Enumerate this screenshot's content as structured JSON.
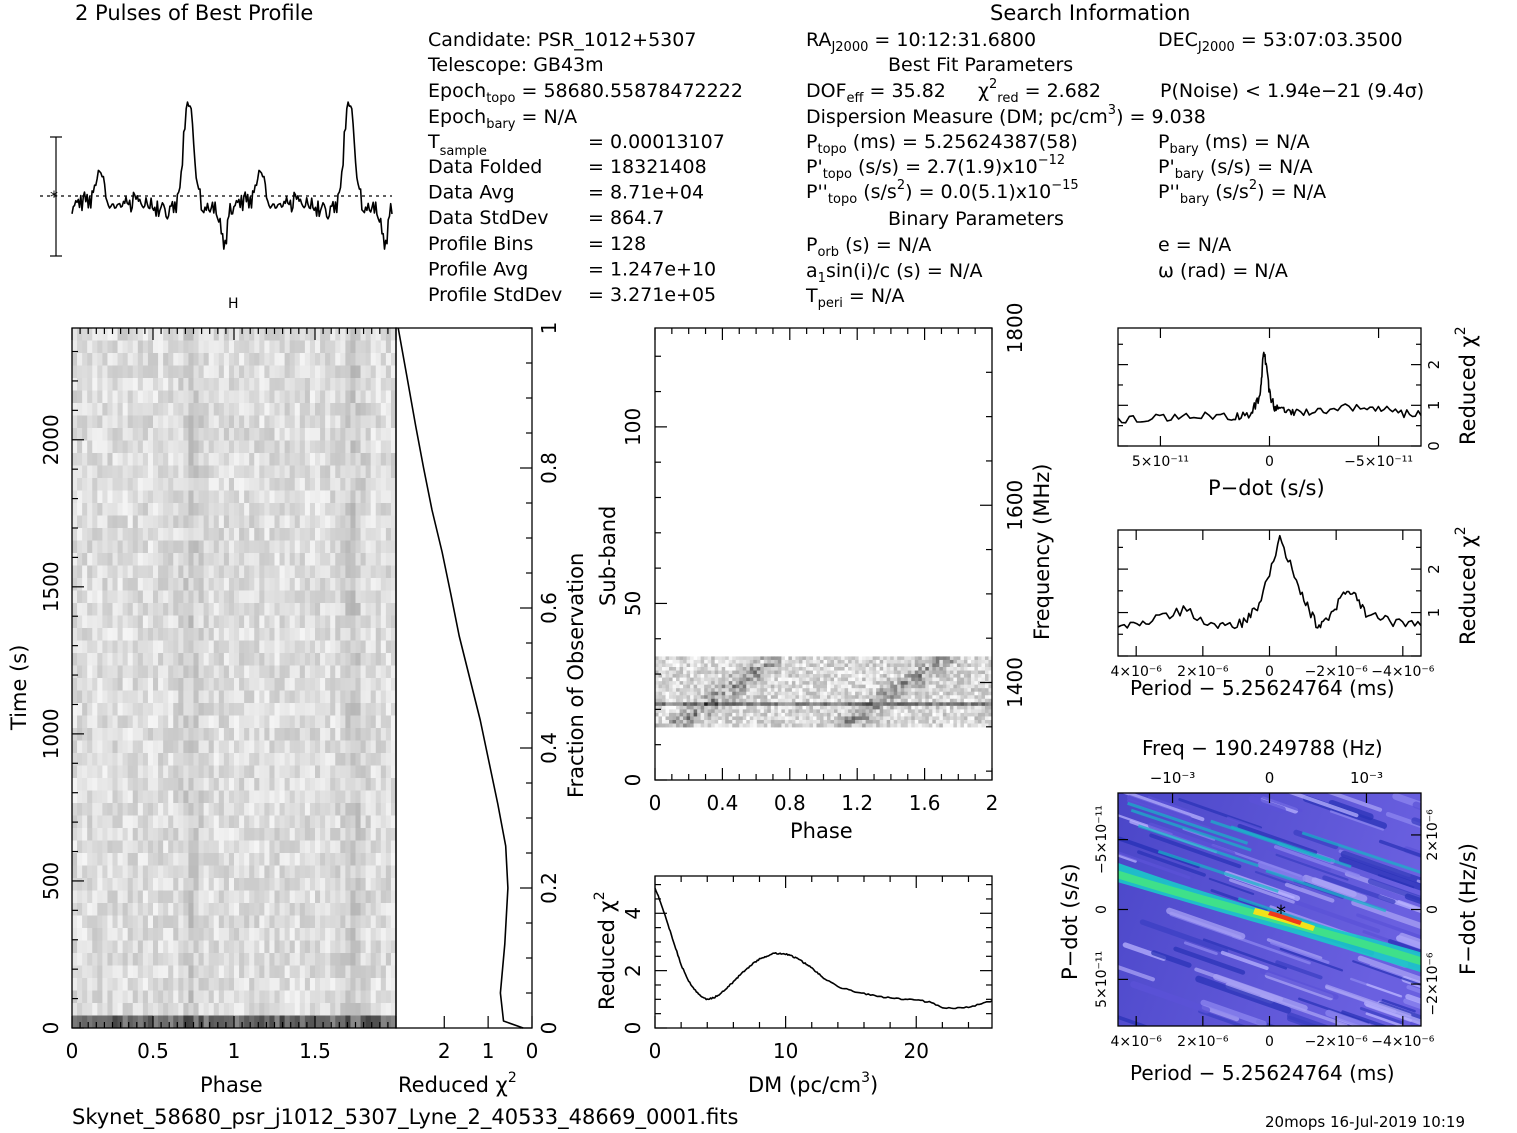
{
  "page": {
    "footer_file": "Skynet_58680_psr_j1012_5307_Lyne_2_40533_48669_0001.fits",
    "footer_stamp": "20mops  16-Jul-2019 10:19"
  },
  "header": {
    "search_title": "Search Information",
    "candidate": "Candidate:  PSR_1012+5307",
    "telescope": "Telescope:  GB43m",
    "epoch_topo": "= 58680.55878472222",
    "epoch_bary": "= N/A",
    "t_sample": {
      "label": "T",
      "sub": "sample",
      "value": "=    0.00013107"
    },
    "left_rows": [
      {
        "label": "Data Folded",
        "value": "=    18321408"
      },
      {
        "label": "Data Avg",
        "value": "=    8.71e+04"
      },
      {
        "label": "Data StdDev",
        "value": "=    864.7"
      },
      {
        "label": "Profile Bins",
        "value": "=    128"
      },
      {
        "label": "Profile Avg",
        "value": "=    1.247e+10"
      },
      {
        "label": "Profile StdDev",
        "value": "=    3.271e+05"
      }
    ],
    "ra": "= 10:12:31.6800",
    "dec": "= 53:07:03.3500",
    "best_fit_title": "Best Fit Parameters",
    "dof": "= 35.82",
    "chi2": "= 2.682",
    "pnoise": "P(Noise) < 1.94e−21   (9.4σ)",
    "dm_line": "Dispersion Measure (DM; pc/cm",
    "dm_value": ") = 9.038",
    "p_topo": "(ms) =   5.25624387(58)",
    "pd_topo": "(s/s) =   2.7(1.9)x10",
    "pd_topo_exp": "−12",
    "pdd_topo": "(s/s",
    "pdd_topo_val": ") = 0.0(5.1)x10",
    "pdd_topo_exp": "−15",
    "p_bary": "(ms) = N/A",
    "pd_bary": "(s/s) = N/A",
    "pdd_bary": "(s/s",
    "pdd_bary_val": ") = N/A",
    "binary_title": "Binary Parameters",
    "porb": "(s) = N/A",
    "a1sin": "sin(i)/c (s) = N/A",
    "tperi": "= N/A",
    "ecc": "e = N/A",
    "omega": "ω (rad) = N/A"
  },
  "chart_data": [
    {
      "id": "profile",
      "type": "line",
      "title": "2 Pulses of Best Profile",
      "x_range": [
        0,
        2
      ],
      "points": 256,
      "peak_phases": [
        0.725,
        1.725
      ],
      "description_values": "normalized profile, two cycles, peaks near phase 0.72 and 1.72"
    },
    {
      "id": "time_phase",
      "type": "heatmap",
      "xlabel": "Phase",
      "ylabel": "Time (s)",
      "x_range": [
        0,
        2
      ],
      "y_range": [
        0,
        2380
      ],
      "xticks": [
        "0",
        "0.5",
        "1",
        "1.5"
      ],
      "yticks": [
        "0",
        "500",
        "1000",
        "1500",
        "2000"
      ]
    },
    {
      "id": "time_redchi",
      "type": "line",
      "xlabel": "Reduced χ",
      "ylabel": "Fraction of Observation",
      "x_range": [
        3.1,
        0
      ],
      "y_range": [
        0,
        1
      ],
      "xticks": [
        "2",
        "1",
        "0"
      ],
      "yticks": [
        "0",
        "0.2",
        "0.4",
        "0.6",
        "0.8",
        "1"
      ],
      "x": [
        0.2,
        0.65,
        0.72,
        0.62,
        0.55,
        0.6,
        0.78,
        0.98,
        1.18,
        1.42,
        1.66,
        1.85,
        2.05,
        2.28,
        2.47,
        2.65,
        2.85,
        3.05
      ],
      "y": [
        0.0,
        0.01,
        0.05,
        0.12,
        0.2,
        0.26,
        0.32,
        0.38,
        0.44,
        0.5,
        0.56,
        0.62,
        0.68,
        0.74,
        0.8,
        0.86,
        0.93,
        1.0
      ]
    },
    {
      "id": "subband_phase",
      "type": "heatmap",
      "xlabel": "Phase",
      "ylabel": "Sub-band",
      "y2label": "Frequency (MHz)",
      "x_range": [
        0,
        2
      ],
      "y_range": [
        0,
        128
      ],
      "y2_range": [
        1290,
        1800
      ],
      "xticks": [
        "0",
        "0.4",
        "0.8",
        "1.2",
        "1.6",
        "2"
      ],
      "yticks": [
        "0",
        "50",
        "100"
      ],
      "y2ticks": [
        "1400",
        "1600",
        "1800"
      ],
      "data_band": [
        15,
        35
      ]
    },
    {
      "id": "dm_curve",
      "type": "line",
      "xlabel": "DM (pc/cm",
      "ylabel": "Reduced χ",
      "x_range": [
        0,
        25.8
      ],
      "y_range": [
        0,
        5.3
      ],
      "xticks": [
        "0",
        "10",
        "20"
      ],
      "yticks": [
        "0",
        "2",
        "4"
      ],
      "x": [
        0,
        0.5,
        1,
        1.5,
        2,
        2.5,
        3,
        3.5,
        4,
        4.5,
        5,
        5.5,
        6,
        6.5,
        7,
        7.5,
        8,
        8.5,
        9,
        9.5,
        10,
        10.5,
        11,
        11.5,
        12,
        12.5,
        13,
        14,
        15,
        16,
        17,
        18,
        19,
        20,
        21,
        22,
        23,
        24,
        25,
        25.8
      ],
      "y": [
        4.9,
        4.3,
        3.6,
        2.9,
        2.2,
        1.7,
        1.35,
        1.1,
        1.0,
        1.05,
        1.2,
        1.4,
        1.6,
        1.85,
        2.05,
        2.25,
        2.4,
        2.5,
        2.6,
        2.6,
        2.58,
        2.5,
        2.4,
        2.25,
        2.1,
        1.9,
        1.7,
        1.45,
        1.3,
        1.2,
        1.1,
        1.05,
        1.0,
        0.98,
        0.9,
        0.72,
        0.68,
        0.72,
        0.85,
        0.95
      ]
    },
    {
      "id": "pdot_curve",
      "type": "line",
      "xlabel": "P−dot (s/s)",
      "ylabel": "Reduced χ",
      "x_range": [
        8e-11,
        -8e-11
      ],
      "y_range": [
        0,
        2.9
      ],
      "xticks": [
        "5×10⁻¹¹",
        "0",
        "−5×10⁻¹¹"
      ],
      "yticks": [
        "0",
        "1",
        "2"
      ],
      "x": [
        8e-11,
        6e-11,
        4e-11,
        2e-11,
        1e-11,
        5e-12,
        3e-12,
        0,
        -3e-12,
        -8e-12,
        -1.5e-11,
        -3e-11,
        -5e-11,
        -6.5e-11,
        -8e-11
      ],
      "y": [
        0.6,
        0.7,
        0.75,
        0.7,
        0.8,
        1.2,
        2.4,
        1.3,
        0.9,
        0.9,
        0.85,
        0.9,
        1.0,
        0.85,
        0.75
      ]
    },
    {
      "id": "period_curve",
      "type": "line",
      "xlabel": "Period − 5.25624764 (ms)",
      "ylabel": "Reduced χ",
      "x_range": [
        4.4e-06,
        -4.4e-06
      ],
      "y_range": [
        0,
        2.9
      ],
      "xticks": [
        "4×10⁻⁶",
        "2×10⁻⁶",
        "0",
        "−2×10⁻⁶",
        "−4×10⁻⁶"
      ],
      "yticks": [
        "1",
        "2"
      ],
      "x": [
        4.4e-06,
        3.5e-06,
        2.5e-06,
        1.5e-06,
        8e-07,
        3e-07,
        -3e-07,
        -9e-07,
        -1.4e-06,
        -1.8e-06,
        -2.3e-06,
        -2.8e-06,
        -3.5e-06,
        -4.4e-06
      ],
      "y": [
        0.7,
        0.8,
        1.05,
        0.7,
        0.75,
        1.2,
        2.7,
        1.5,
        0.65,
        1.0,
        1.55,
        1.0,
        0.8,
        0.7
      ]
    },
    {
      "id": "ppdot_map",
      "type": "heatmap",
      "title": "Freq − 190.249788 (Hz)",
      "xlabel": "Period − 5.25624764 (ms)",
      "ylabel": "P−dot (s/s)",
      "y2label": "F−dot (Hz/s)",
      "x_range": [
        4.4e-06,
        -4.4e-06
      ],
      "y_range": [
        8e-11,
        -8e-11
      ],
      "xticks": [
        "4×10⁻⁶",
        "2×10⁻⁶",
        "0",
        "−2×10⁻⁶",
        "−4×10⁻⁶"
      ],
      "x2ticks": [
        "−10⁻³",
        "0",
        "10⁻³"
      ],
      "yticks": [
        "−5×10⁻¹¹",
        "0",
        "5×10⁻¹¹"
      ],
      "y2ticks": [
        "2×10⁻⁶",
        "0",
        "−2×10⁻⁶"
      ],
      "best": {
        "x": -4e-07,
        "y": 1e-12
      }
    }
  ]
}
